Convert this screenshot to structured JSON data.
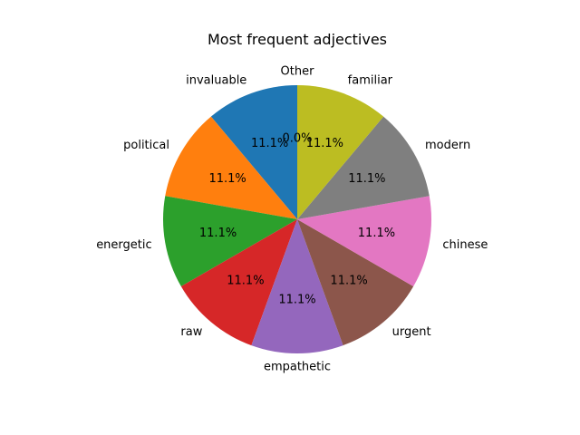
{
  "chart_data": {
    "type": "pie",
    "title": "Most frequent adjectives",
    "start_angle_deg": 90,
    "direction": "counterclockwise",
    "slices": [
      {
        "label": "invaluable",
        "value": 11.1,
        "pct_label": "11.1%",
        "color": "#1f77b4"
      },
      {
        "label": "political",
        "value": 11.1,
        "pct_label": "11.1%",
        "color": "#ff7f0e"
      },
      {
        "label": "energetic",
        "value": 11.1,
        "pct_label": "11.1%",
        "color": "#2ca02c"
      },
      {
        "label": "raw",
        "value": 11.1,
        "pct_label": "11.1%",
        "color": "#d62728"
      },
      {
        "label": "empathetic",
        "value": 11.1,
        "pct_label": "11.1%",
        "color": "#9467bd"
      },
      {
        "label": "urgent",
        "value": 11.1,
        "pct_label": "11.1%",
        "color": "#8c564b"
      },
      {
        "label": "chinese",
        "value": 11.1,
        "pct_label": "11.1%",
        "color": "#e377c2"
      },
      {
        "label": "modern",
        "value": 11.1,
        "pct_label": "11.1%",
        "color": "#7f7f7f"
      },
      {
        "label": "familiar",
        "value": 11.1,
        "pct_label": "11.1%",
        "color": "#bcbd22"
      },
      {
        "label": "Other",
        "value": 0.0,
        "pct_label": "0.0%",
        "color": "#17becf"
      }
    ]
  }
}
